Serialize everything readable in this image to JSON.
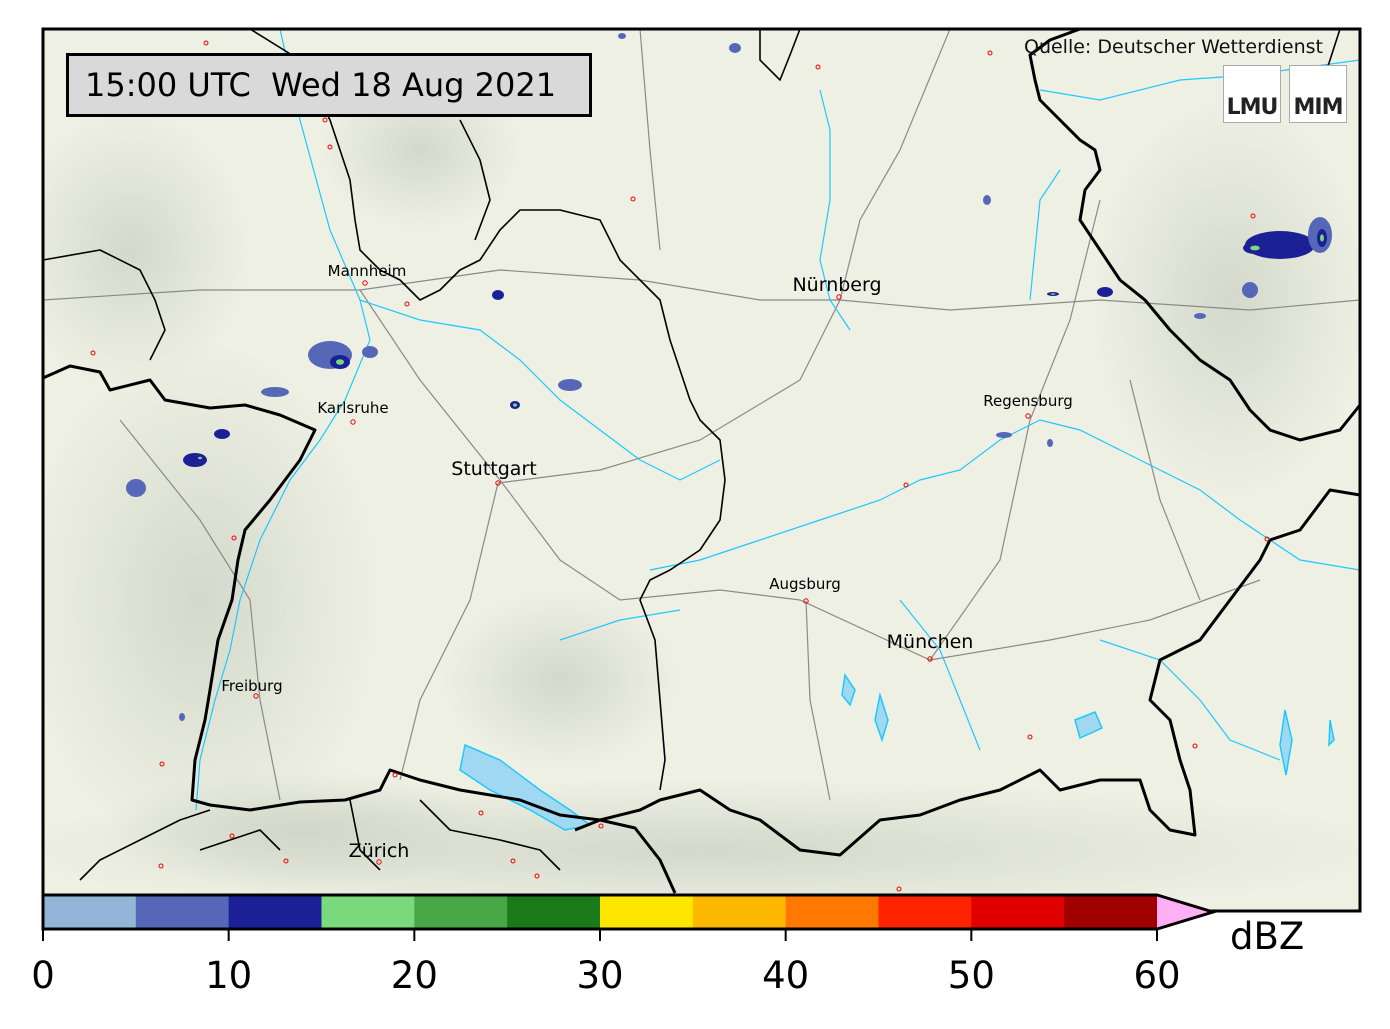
{
  "timestamp": "15:00 UTC  Wed 18 Aug 2021",
  "source": "Quelle: Deutscher Wetterdienst",
  "logos": [
    "LMU",
    "MIM"
  ],
  "cities": [
    {
      "name": "Mannheim",
      "class": "minor"
    },
    {
      "name": "Nürnberg",
      "class": "major"
    },
    {
      "name": "Karlsruhe",
      "class": "minor"
    },
    {
      "name": "Stuttgart",
      "class": "major"
    },
    {
      "name": "Regensburg",
      "class": "minor"
    },
    {
      "name": "Augsburg",
      "class": "minor"
    },
    {
      "name": "München",
      "class": "major"
    },
    {
      "name": "Freiburg",
      "class": "minor"
    },
    {
      "name": "Zürich",
      "class": "major"
    }
  ],
  "colorbar": {
    "unit": "dBZ",
    "range": [
      0,
      60
    ],
    "ticks": [
      "0",
      "10",
      "20",
      "30",
      "40",
      "50",
      "60"
    ],
    "bins": [
      {
        "from": 0,
        "to": 5,
        "color": "#93b6d8"
      },
      {
        "from": 5,
        "to": 10,
        "color": "#5667b8"
      },
      {
        "from": 10,
        "to": 15,
        "color": "#1c2096"
      },
      {
        "from": 15,
        "to": 20,
        "color": "#7ad97a"
      },
      {
        "from": 20,
        "to": 25,
        "color": "#48a848"
      },
      {
        "from": 25,
        "to": 30,
        "color": "#1a7a18"
      },
      {
        "from": 30,
        "to": 35,
        "color": "#ffe600"
      },
      {
        "from": 35,
        "to": 40,
        "color": "#ffb800"
      },
      {
        "from": 40,
        "to": 45,
        "color": "#ff7800"
      },
      {
        "from": 45,
        "to": 50,
        "color": "#ff2400"
      },
      {
        "from": 50,
        "to": 55,
        "color": "#e00000"
      },
      {
        "from": 55,
        "to": 60,
        "color": "#a00000"
      }
    ],
    "over_color": "#ffb0f5"
  },
  "colors": {
    "border": "#000000",
    "river": "#1ec8ff",
    "road": "#888888",
    "lake": "#9fd8f0",
    "terrain": "#eef0e4"
  }
}
